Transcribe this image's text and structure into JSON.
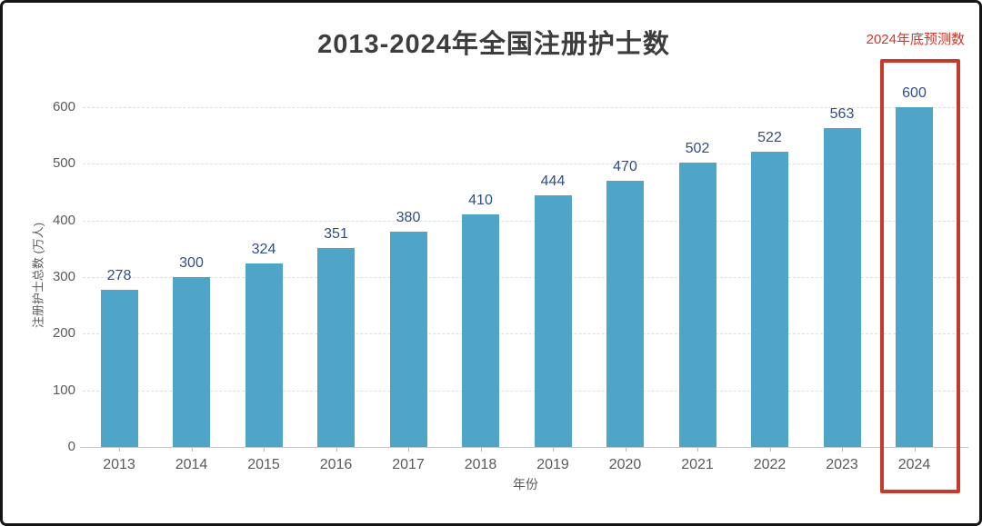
{
  "chart_data": {
    "type": "bar",
    "title": "2013-2024年全国注册护士数",
    "xlabel": "年份",
    "ylabel": "注册护士总数 (万人)",
    "categories": [
      "2013",
      "2014",
      "2015",
      "2016",
      "2017",
      "2018",
      "2019",
      "2020",
      "2021",
      "2022",
      "2023",
      "2024"
    ],
    "values": [
      278,
      300,
      324,
      351,
      380,
      410,
      444,
      470,
      502,
      522,
      563,
      600
    ],
    "ylim": [
      0,
      600
    ],
    "ytick_step": 100,
    "yticks": [
      0,
      100,
      200,
      300,
      400,
      500,
      600
    ],
    "grid": "horizontal-dashed",
    "legend": "none",
    "bar_color": "#4ea5c8",
    "value_label_color": "#2f4d8c"
  },
  "annotation": {
    "label": "2024年底预测数",
    "color": "#cf372a",
    "highlighted_category": "2024"
  }
}
